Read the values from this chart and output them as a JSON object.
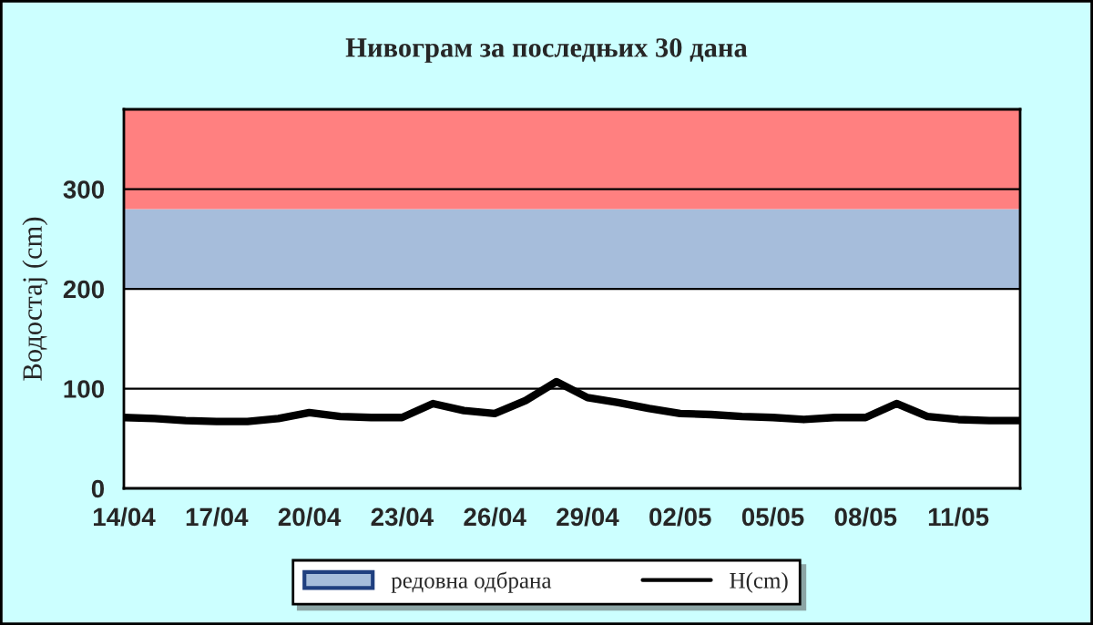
{
  "chart_data": {
    "type": "line",
    "title": "Нивограм за последњих 30 дана",
    "ylabel": "Водостај (cm)",
    "categories": [
      "14/04",
      null,
      null,
      "17/04",
      null,
      null,
      "20/04",
      null,
      null,
      "23/04",
      null,
      null,
      "26/04",
      null,
      null,
      "29/04",
      null,
      null,
      "02/05",
      null,
      null,
      "05/05",
      null,
      null,
      "08/05",
      null,
      null,
      "11/05",
      null,
      null
    ],
    "series": [
      {
        "name": "H(cm)",
        "color": "#000000",
        "values": [
          71,
          70,
          68,
          67,
          67,
          70,
          76,
          72,
          71,
          71,
          85,
          78,
          75,
          88,
          107,
          91,
          86,
          80,
          75,
          74,
          72,
          71,
          69,
          71,
          71,
          85,
          72,
          69,
          68,
          68
        ]
      }
    ],
    "bands": [
      {
        "axis": "y",
        "from": 200,
        "to": 280,
        "label": "редовна одбрана",
        "color": "#a6bddb"
      },
      {
        "axis": "y",
        "from": 280,
        "to": 380,
        "color": "#ff8080"
      }
    ],
    "ylim": [
      0,
      380
    ],
    "yticks": [
      0,
      100,
      200,
      300
    ],
    "grid": "y",
    "legend": "bottom",
    "marker": "none",
    "line_style": "solid"
  }
}
